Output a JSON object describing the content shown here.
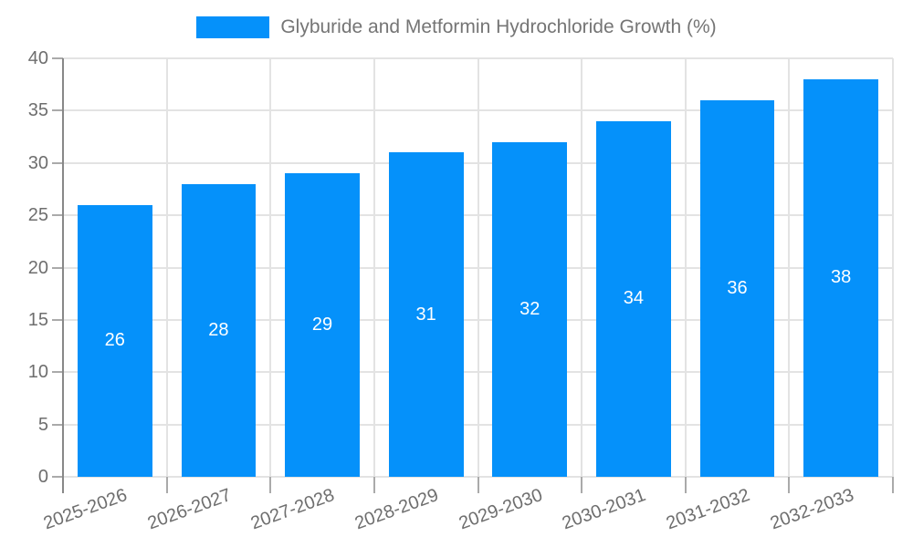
{
  "legend": {
    "label": "Glyburide and Metformin Hydrochloride Growth (%)"
  },
  "chart_data": {
    "type": "bar",
    "title": "Glyburide and Metformin Hydrochloride Growth (%)",
    "categories": [
      "2025-2026",
      "2026-2027",
      "2027-2028",
      "2028-2029",
      "2029-2030",
      "2030-2031",
      "2031-2032",
      "2032-2033"
    ],
    "values": [
      26,
      28,
      29,
      31,
      32,
      34,
      36,
      38
    ],
    "value_labels": [
      "26",
      "28",
      "29",
      "31",
      "32",
      "34",
      "36",
      "38"
    ],
    "ytick_labels": [
      "0",
      "5",
      "10",
      "15",
      "20",
      "25",
      "30",
      "35",
      "40"
    ],
    "xlabel": "",
    "ylabel": "",
    "ylim": [
      0,
      40
    ],
    "ytick_step": 5,
    "grid": true,
    "legend_position": "top",
    "value_labels_inside_bars": true,
    "xtick_label_rotation_deg": -20
  },
  "colors": {
    "bar": "#0591fa",
    "grid": "#e3e3e3",
    "tick": "#aaaaaa",
    "axis_line": "#888888",
    "tick_label": "#6e6e6e",
    "legend_text": "#757575",
    "value_label": "#ffffff",
    "background": "#ffffff"
  }
}
